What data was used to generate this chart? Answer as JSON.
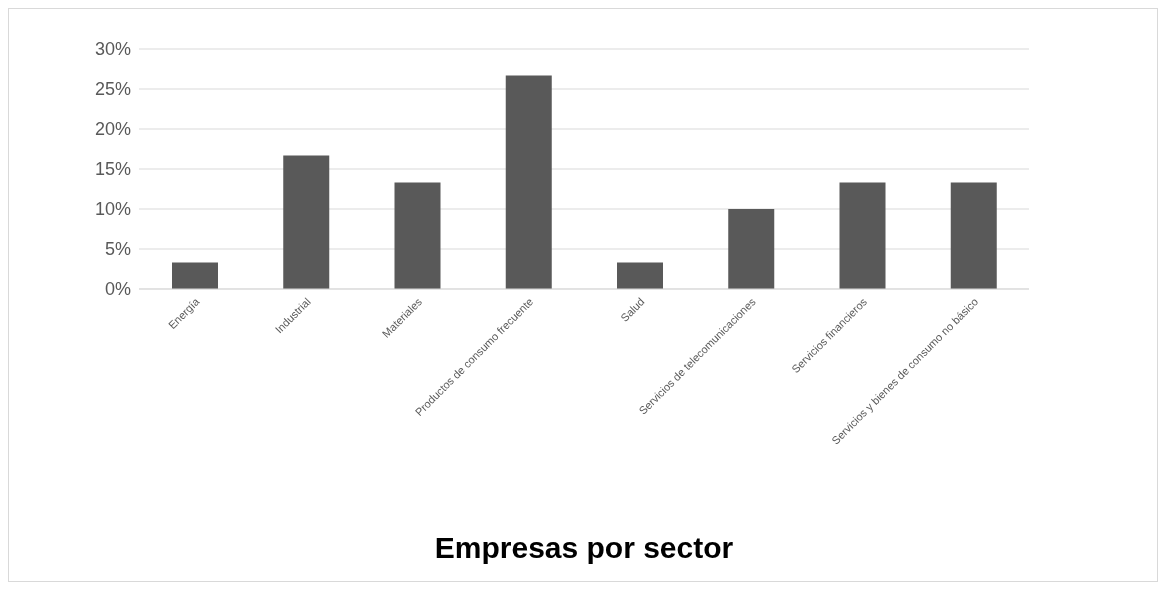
{
  "chart_data": {
    "type": "bar",
    "title": "Empresas por sector",
    "categories": [
      "Energía",
      "Industrial",
      "Materiales",
      "Productos de consumo frecuente",
      "Salud",
      "Servicios de telecomunicaciones",
      "Servicios financieros",
      "Servicios y bienes de consumo no básico"
    ],
    "values": [
      3.3,
      16.7,
      13.3,
      26.7,
      3.3,
      10,
      13.3,
      13.3
    ],
    "color": "#595959",
    "ylim": [
      0,
      30
    ],
    "yticks": [
      {
        "value": 0,
        "label": "0%"
      },
      {
        "value": 5,
        "label": "5%"
      },
      {
        "value": 10,
        "label": "10%"
      },
      {
        "value": 15,
        "label": "15%"
      },
      {
        "value": 20,
        "label": "20%"
      },
      {
        "value": 25,
        "label": "25%"
      },
      {
        "value": 30,
        "label": "30%"
      }
    ],
    "grid": "y"
  }
}
